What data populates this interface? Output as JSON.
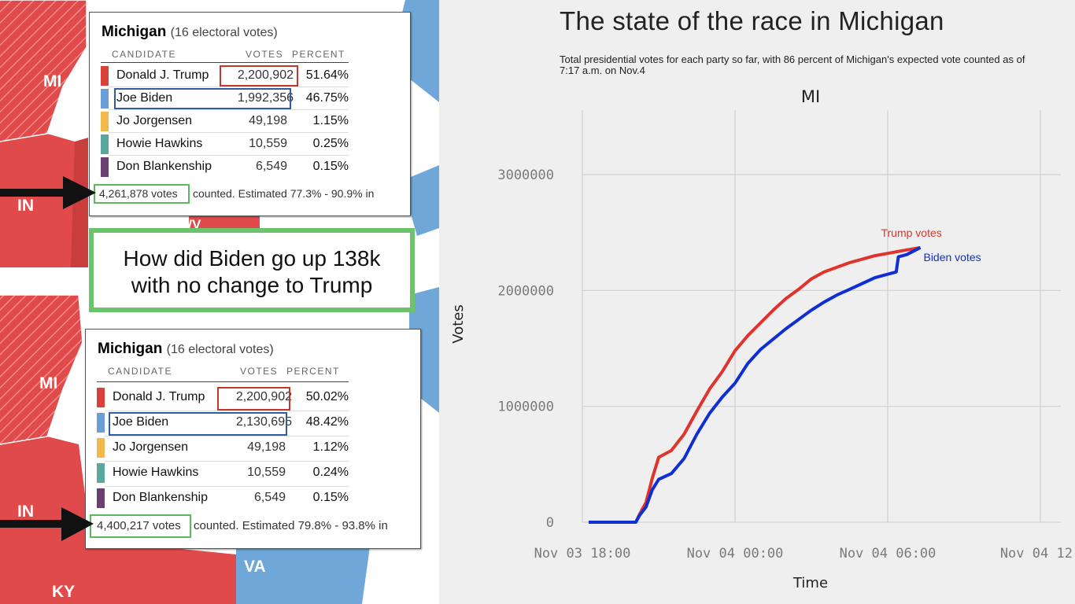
{
  "left": {
    "top_panel": {
      "title": "Michigan",
      "electoral": "(16 electoral votes)",
      "headers": {
        "candidate": "CANDIDATE",
        "votes": "VOTES",
        "percent": "PERCENT"
      },
      "rows": [
        {
          "name": "Donald J. Trump",
          "votes": "2,200,902",
          "percent": "51.64%",
          "color": "#d9413a"
        },
        {
          "name": "Joe Biden",
          "votes": "1,992,356",
          "percent": "46.75%",
          "color": "#6a9ed6"
        },
        {
          "name": "Jo Jorgensen",
          "votes": "49,198",
          "percent": "1.15%",
          "color": "#f2b84b"
        },
        {
          "name": "Howie Hawkins",
          "votes": "10,559",
          "percent": "0.25%",
          "color": "#5aa79d"
        },
        {
          "name": "Don Blankenship",
          "votes": "6,549",
          "percent": "0.15%",
          "color": "#6b3f72"
        }
      ],
      "total": "4,261,878 votes",
      "estimate": "counted. Estimated 77.3% - 90.9% in"
    },
    "bottom_panel": {
      "title": "Michigan",
      "electoral": "(16 electoral votes)",
      "headers": {
        "candidate": "CANDIDATE",
        "votes": "VOTES",
        "percent": "PERCENT"
      },
      "rows": [
        {
          "name": "Donald J. Trump",
          "votes": "2,200,902",
          "percent": "50.02%",
          "color": "#d9413a"
        },
        {
          "name": "Joe Biden",
          "votes": "2,130,695",
          "percent": "48.42%",
          "color": "#6a9ed6"
        },
        {
          "name": "Jo Jorgensen",
          "votes": "49,198",
          "percent": "1.12%",
          "color": "#f2b84b"
        },
        {
          "name": "Howie Hawkins",
          "votes": "10,559",
          "percent": "0.24%",
          "color": "#5aa79d"
        },
        {
          "name": "Don Blankenship",
          "votes": "6,549",
          "percent": "0.15%",
          "color": "#6b3f72"
        }
      ],
      "total": "4,400,217 votes",
      "estimate": "counted. Estimated 79.8% - 93.8% in"
    },
    "question_line1": "How did Biden go up 138k",
    "question_line2": "with no change to Trump",
    "map_labels_top": {
      "mi": "MI",
      "in": "IN",
      "wv": "WV"
    },
    "map_labels_bottom": {
      "mi": "MI",
      "in": "IN",
      "va": "VA",
      "ky": "KY"
    },
    "colors": {
      "red_state": "#e04a4a",
      "blue_state": "#6fa8d8",
      "highlight_red": "#c0392b",
      "highlight_blue": "#2e5c9e",
      "highlight_green": "#5cb85c"
    }
  },
  "chart": {
    "title": "The state of the race in Michigan",
    "subtitle": "Total presidential votes for each party so far, with 86 percent of Michigan's expected vote counted as of 7:17 a.m. on Nov.4",
    "panel_title": "MI"
  },
  "chart_data": {
    "type": "line",
    "title": "The state of the race in Michigan",
    "xlabel": "Time",
    "ylabel": "Votes",
    "x_ticks": [
      "Nov 03 18:00",
      "Nov 04 00:00",
      "Nov 04 06:00",
      "Nov 04 12:"
    ],
    "y_ticks": [
      "0",
      "1000000",
      "2000000",
      "3000000"
    ],
    "ylim": [
      0,
      3000000
    ],
    "grid": true,
    "series": [
      {
        "name": "Trump votes",
        "color": "#e0332d",
        "points": [
          [
            "Nov 03 18:15",
            0
          ],
          [
            "Nov 03 19:00",
            0
          ],
          [
            "Nov 03 20:00",
            0
          ],
          [
            "Nov 03 20:06",
            0
          ],
          [
            "Nov 03 20:15",
            70000
          ],
          [
            "Nov 03 20:30",
            170000
          ],
          [
            "Nov 03 20:45",
            380000
          ],
          [
            "Nov 03 21:00",
            560000
          ],
          [
            "Nov 03 21:30",
            620000
          ],
          [
            "Nov 03 22:00",
            760000
          ],
          [
            "Nov 03 22:30",
            960000
          ],
          [
            "Nov 03 23:00",
            1150000
          ],
          [
            "Nov 03 23:30",
            1300000
          ],
          [
            "Nov 04 00:00",
            1480000
          ],
          [
            "Nov 04 00:30",
            1610000
          ],
          [
            "Nov 04 01:00",
            1720000
          ],
          [
            "Nov 04 01:30",
            1830000
          ],
          [
            "Nov 04 02:00",
            1930000
          ],
          [
            "Nov 04 02:30",
            2010000
          ],
          [
            "Nov 04 03:00",
            2100000
          ],
          [
            "Nov 04 03:30",
            2160000
          ],
          [
            "Nov 04 04:00",
            2200000
          ],
          [
            "Nov 04 04:30",
            2240000
          ],
          [
            "Nov 04 05:00",
            2270000
          ],
          [
            "Nov 04 05:30",
            2300000
          ],
          [
            "Nov 04 06:00",
            2320000
          ],
          [
            "Nov 04 06:30",
            2340000
          ],
          [
            "Nov 04 07:17",
            2370000
          ]
        ]
      },
      {
        "name": "Biden votes",
        "color": "#0f2fd4",
        "points": [
          [
            "Nov 03 18:15",
            0
          ],
          [
            "Nov 03 19:00",
            0
          ],
          [
            "Nov 03 20:00",
            0
          ],
          [
            "Nov 03 20:06",
            0
          ],
          [
            "Nov 03 20:15",
            60000
          ],
          [
            "Nov 03 20:30",
            130000
          ],
          [
            "Nov 03 20:45",
            280000
          ],
          [
            "Nov 03 21:00",
            370000
          ],
          [
            "Nov 03 21:30",
            420000
          ],
          [
            "Nov 03 22:00",
            550000
          ],
          [
            "Nov 03 22:30",
            760000
          ],
          [
            "Nov 03 23:00",
            940000
          ],
          [
            "Nov 03 23:30",
            1080000
          ],
          [
            "Nov 04 00:00",
            1200000
          ],
          [
            "Nov 04 00:30",
            1370000
          ],
          [
            "Nov 04 01:00",
            1490000
          ],
          [
            "Nov 04 01:30",
            1580000
          ],
          [
            "Nov 04 02:00",
            1670000
          ],
          [
            "Nov 04 02:30",
            1750000
          ],
          [
            "Nov 04 03:00",
            1830000
          ],
          [
            "Nov 04 03:30",
            1900000
          ],
          [
            "Nov 04 04:00",
            1960000
          ],
          [
            "Nov 04 04:30",
            2010000
          ],
          [
            "Nov 04 05:00",
            2060000
          ],
          [
            "Nov 04 05:30",
            2110000
          ],
          [
            "Nov 04 06:00",
            2140000
          ],
          [
            "Nov 04 06:20",
            2160000
          ],
          [
            "Nov 04 06:25",
            2290000
          ],
          [
            "Nov 04 06:45",
            2310000
          ],
          [
            "Nov 04 07:17",
            2370000
          ]
        ]
      }
    ]
  }
}
